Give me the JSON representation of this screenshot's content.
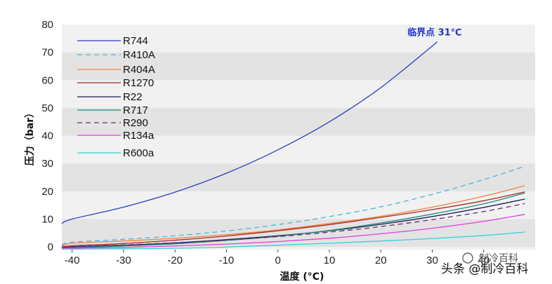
{
  "chart_data": {
    "type": "line",
    "title": "",
    "xlabel": "温度 (°C)",
    "ylabel": "压力（bar）",
    "xlim": [
      -42,
      50
    ],
    "ylim": [
      -1,
      80
    ],
    "xticks": [
      "-40",
      "-30",
      "-20",
      "-10",
      "0",
      "10",
      "20",
      "30",
      "40"
    ],
    "yticks": [
      "0",
      "10",
      "20",
      "30",
      "40",
      "50",
      "60",
      "70",
      "80"
    ],
    "grid": "horizontal alternating bands",
    "legend_position": "top-left",
    "series": [
      {
        "name": "R744",
        "color": "#2b3fbf",
        "dash": "solid",
        "x": [
          -42,
          -40,
          -30,
          -20,
          -10,
          0,
          10,
          20,
          31
        ],
        "y": [
          8.4,
          10.0,
          14.3,
          19.7,
          26.5,
          34.9,
          45.0,
          57.3,
          73.8
        ]
      },
      {
        "name": "R410A",
        "color": "#3fb7e0",
        "dash": "dashed",
        "x": [
          -42,
          -40,
          -30,
          -20,
          -10,
          0,
          10,
          20,
          30,
          40,
          48
        ],
        "y": [
          0.6,
          1.7,
          2.7,
          4.0,
          5.7,
          8.0,
          10.9,
          14.4,
          18.9,
          24.2,
          29.0
        ]
      },
      {
        "name": "R404A",
        "color": "#f0843a",
        "dash": "solid",
        "x": [
          -42,
          -40,
          -30,
          -20,
          -10,
          0,
          10,
          20,
          30,
          40,
          48
        ],
        "y": [
          0.3,
          1.3,
          2.1,
          3.1,
          4.4,
          6.1,
          8.4,
          11.0,
          14.3,
          18.2,
          22.0
        ]
      },
      {
        "name": "R1270",
        "color": "#a12a2a",
        "dash": "solid",
        "x": [
          -42,
          -40,
          -30,
          -20,
          -10,
          0,
          10,
          20,
          30,
          40,
          48
        ],
        "y": [
          0.0,
          0.4,
          1.2,
          2.4,
          3.9,
          5.8,
          8.0,
          10.6,
          13.4,
          16.6,
          19.8
        ]
      },
      {
        "name": "R22",
        "color": "#1a1f5a",
        "dash": "solid",
        "x": [
          -42,
          -40,
          -30,
          -20,
          -10,
          0,
          10,
          20,
          30,
          40,
          48
        ],
        "y": [
          -0.5,
          0.0,
          0.6,
          1.4,
          2.6,
          4.0,
          5.8,
          8.1,
          10.9,
          14.2,
          17.2
        ]
      },
      {
        "name": "R717",
        "color": "#1f8a7a",
        "dash": "solid",
        "x": [
          -42,
          -40,
          -30,
          -20,
          -10,
          0,
          10,
          20,
          30,
          40,
          48
        ],
        "y": [
          -0.7,
          -0.3,
          0.3,
          1.1,
          2.3,
          3.8,
          5.9,
          8.6,
          11.8,
          15.5,
          19.4
        ]
      },
      {
        "name": "R290",
        "color": "#6a2a6a",
        "dash": "dashed",
        "x": [
          -42,
          -40,
          -30,
          -20,
          -10,
          0,
          10,
          20,
          30,
          40,
          48
        ],
        "y": [
          -0.3,
          0.1,
          0.7,
          1.5,
          2.5,
          3.7,
          5.3,
          7.3,
          9.8,
          12.7,
          15.6
        ]
      },
      {
        "name": "R134a",
        "color": "#e23ce0",
        "dash": "solid",
        "x": [
          -42,
          -40,
          -30,
          -20,
          -10,
          0,
          10,
          20,
          30,
          40,
          48
        ],
        "y": [
          -0.5,
          -0.5,
          -0.2,
          0.3,
          1.0,
          1.9,
          3.1,
          4.7,
          6.7,
          9.2,
          11.7
        ]
      },
      {
        "name": "R600a",
        "color": "#2ed3dc",
        "dash": "solid",
        "x": [
          -42,
          -40,
          -30,
          -20,
          -10,
          0,
          10,
          20,
          30,
          40,
          48
        ],
        "y": [
          -0.8,
          -0.8,
          -0.7,
          -0.5,
          -0.1,
          0.6,
          1.3,
          2.1,
          3.0,
          4.1,
          5.3
        ]
      }
    ],
    "annotations": [
      {
        "text": "临界点 31℃",
        "x": 31,
        "y": 73.8
      }
    ]
  },
  "watermark": {
    "line1": "制冷百科",
    "line2": "头条 @制冷百科"
  },
  "colors": {
    "band_dark": "#e3e3e3",
    "band_light": "#f1f1f1",
    "annotation": "#1f35c9"
  }
}
